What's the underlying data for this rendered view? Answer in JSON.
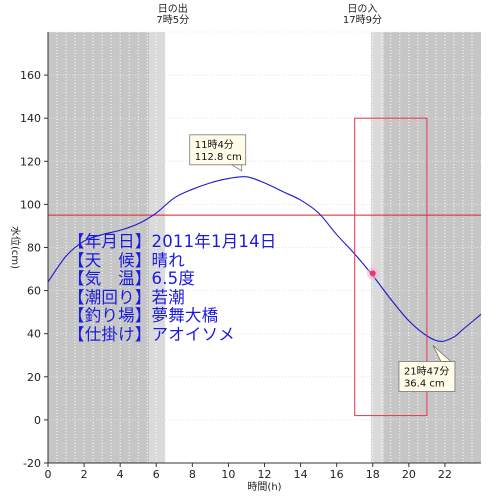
{
  "chart_data": {
    "type": "line",
    "xlabel": "時間(h)",
    "ylabel": "水位(cm)",
    "xlim": [
      0,
      24
    ],
    "ylim": [
      -20,
      180
    ],
    "xticks": [
      0,
      2,
      4,
      6,
      8,
      10,
      12,
      14,
      16,
      18,
      20,
      22
    ],
    "yticks": [
      -20,
      0,
      20,
      40,
      60,
      80,
      100,
      120,
      140,
      160
    ],
    "sunrise": {
      "title": "日の出",
      "time": "7時5分",
      "hour": 7.083
    },
    "sunset": {
      "title": "日の入",
      "time": "17時9分",
      "hour": 17.15
    },
    "night_bands": [
      [
        0,
        5.6
      ],
      [
        18.6,
        24
      ]
    ],
    "twilight_bands": [
      [
        5.6,
        6.5
      ],
      [
        17.9,
        18.6
      ]
    ],
    "reference_line": 95,
    "tide_curve": {
      "x": [
        0,
        1,
        2,
        3,
        4,
        5,
        6,
        7,
        8,
        9,
        10,
        11,
        12,
        13,
        14,
        15,
        16,
        17,
        18,
        19,
        20,
        21,
        21.78,
        22.5,
        23,
        24
      ],
      "y": [
        64,
        76,
        83,
        86,
        88,
        91,
        96,
        103,
        107,
        110,
        112,
        112.8,
        110,
        106,
        102,
        96,
        86,
        77,
        67,
        56,
        46,
        39,
        36.4,
        38.5,
        42,
        49
      ]
    },
    "marker": {
      "x": 18,
      "y": 68,
      "color": "#ee3377"
    },
    "highlight_box": {
      "x": [
        17,
        21
      ],
      "y": [
        2,
        140
      ],
      "color": "#e8334c"
    },
    "high_tide": {
      "time": "11時4分",
      "level": "112.8 cm",
      "x": 11.07,
      "y": 112.8
    },
    "low_tide": {
      "time": "21時47分",
      "level": "36.4 cm",
      "x": 21.78,
      "y": 36.4
    }
  },
  "info": {
    "date": "【年月日】2011年1月14日",
    "weather": "【天　候】晴れ",
    "temperature": "【気　温】6.5度",
    "tide": "【潮回り】若潮",
    "spot": "【釣り場】夢舞大橋",
    "rig": "【仕掛け】アオイソメ"
  },
  "colors": {
    "night": "#c6c6c6",
    "twilight": "#dadada",
    "curve": "#1a1acc",
    "reference_line": "#dd2222",
    "info_text": "#1b1be0"
  }
}
